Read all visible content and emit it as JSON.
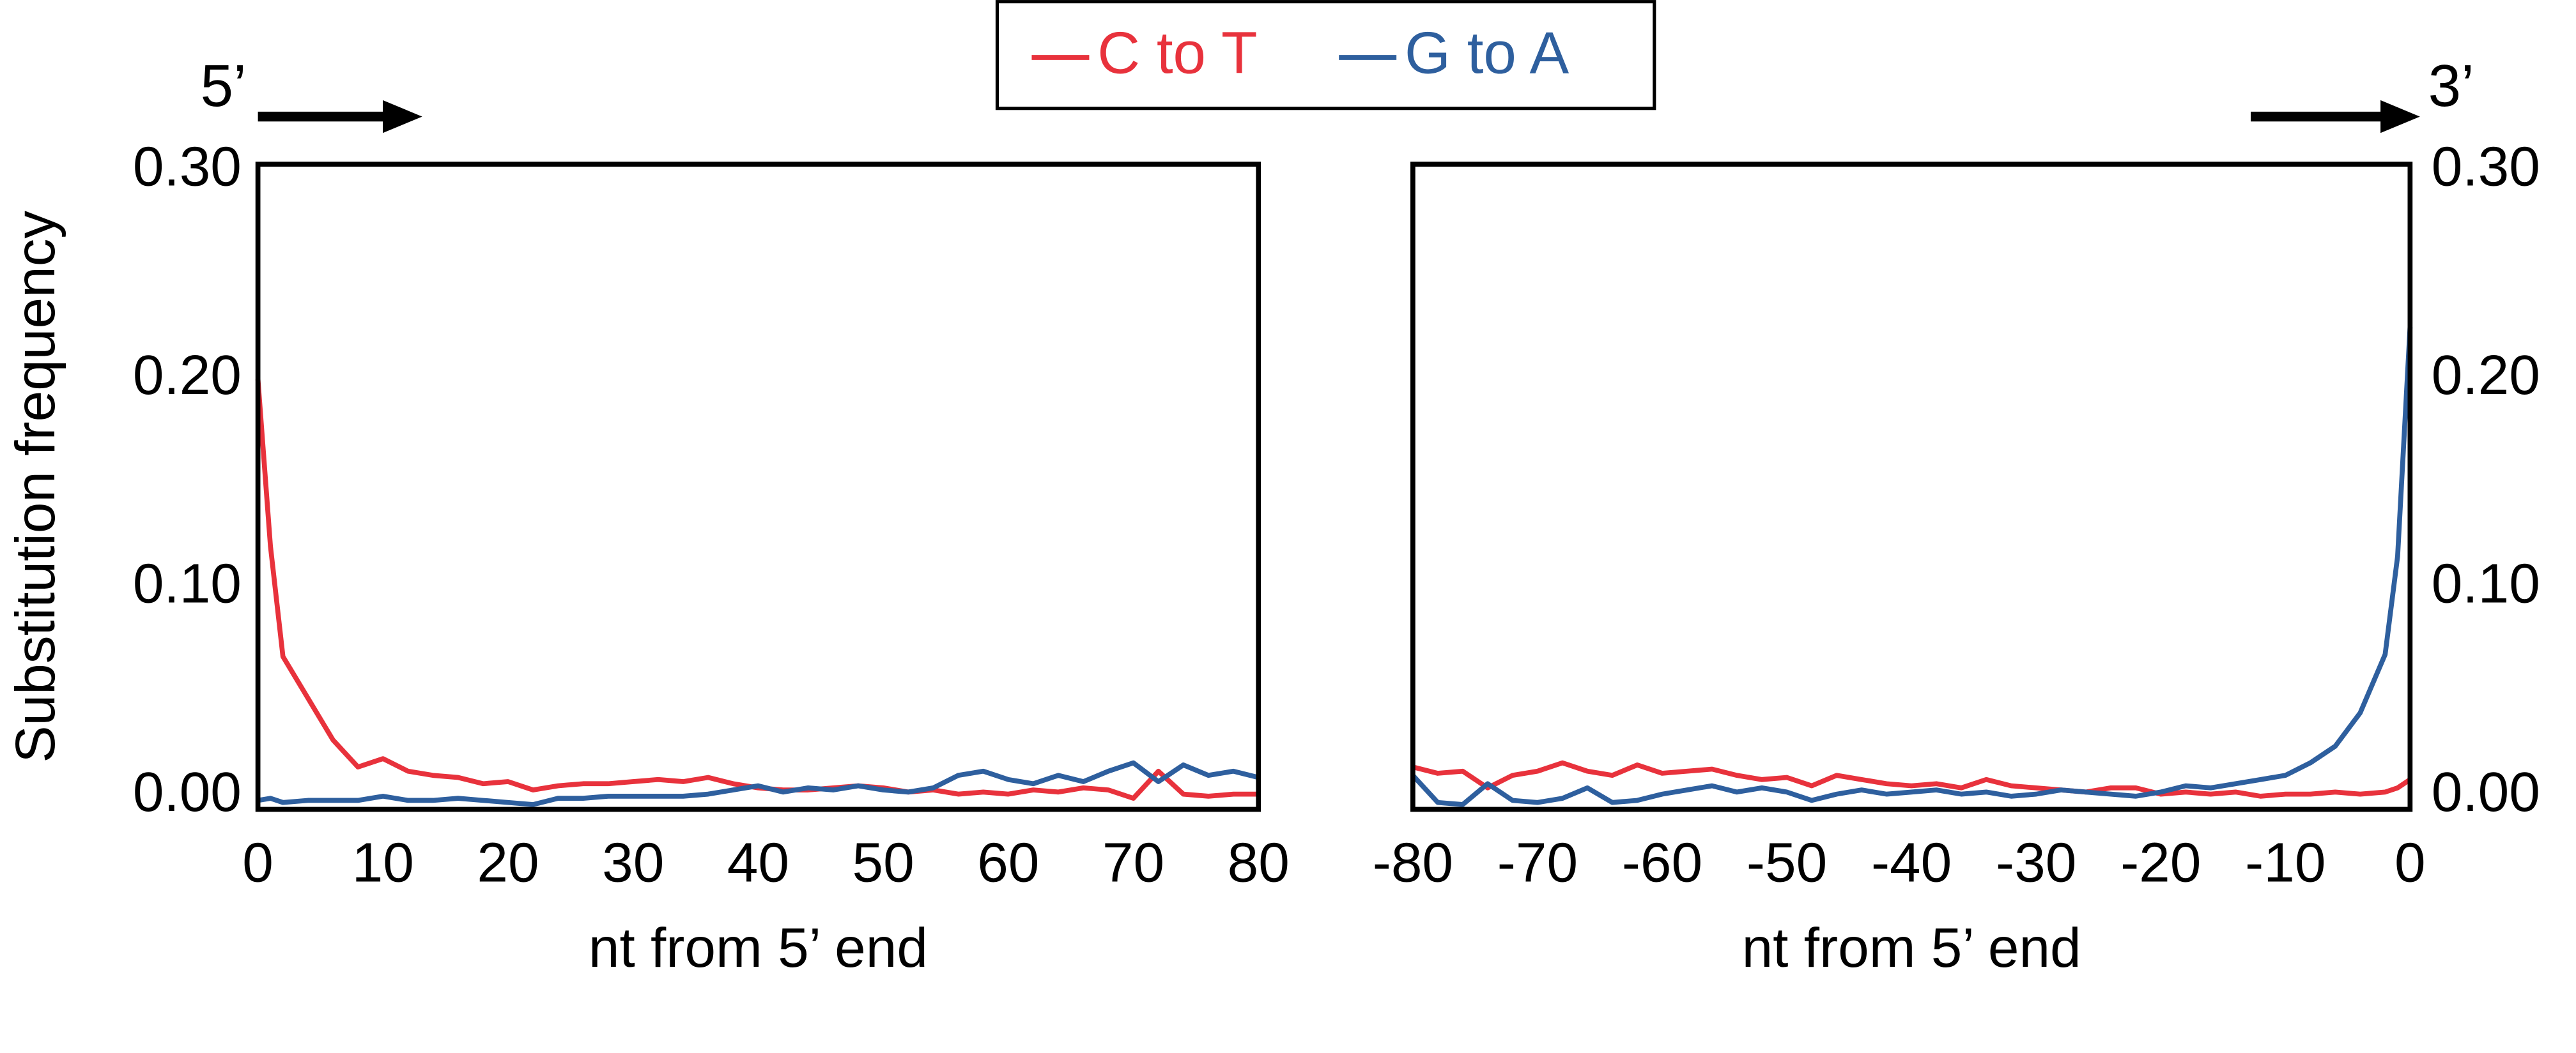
{
  "chart_data": [
    {
      "type": "line",
      "annotation": "5’",
      "xlabel": "nt from 5’ end",
      "ylabel": "Substitution frequency",
      "x": [
        0,
        1,
        2,
        4,
        6,
        8,
        10,
        12,
        14,
        16,
        18,
        20,
        22,
        24,
        26,
        28,
        30,
        32,
        34,
        36,
        38,
        40,
        42,
        44,
        46,
        48,
        50,
        52,
        54,
        56,
        58,
        60,
        62,
        64,
        66,
        68,
        70,
        72,
        74,
        76,
        78,
        80
      ],
      "series": [
        {
          "name": "C to T",
          "color": "#e8323c",
          "values": [
            0.2,
            0.12,
            0.067,
            0.047,
            0.027,
            0.014,
            0.018,
            0.012,
            0.01,
            0.009,
            0.006,
            0.007,
            0.003,
            0.005,
            0.006,
            0.006,
            0.007,
            0.008,
            0.007,
            0.009,
            0.006,
            0.004,
            0.003,
            0.003,
            0.004,
            0.005,
            0.004,
            0.002,
            0.003,
            0.001,
            0.002,
            0.001,
            0.003,
            0.002,
            0.004,
            0.003,
            -0.001,
            0.012,
            0.001,
            0.0,
            0.001,
            0.001
          ]
        },
        {
          "name": "G to A",
          "color": "#2e5f9e",
          "values": [
            -0.002,
            -0.001,
            -0.003,
            -0.002,
            -0.002,
            -0.002,
            0.0,
            -0.002,
            -0.002,
            -0.001,
            -0.002,
            -0.003,
            -0.004,
            -0.001,
            -0.001,
            0.0,
            0.0,
            0.0,
            0.0,
            0.001,
            0.003,
            0.005,
            0.002,
            0.004,
            0.003,
            0.005,
            0.003,
            0.002,
            0.004,
            0.01,
            0.012,
            0.008,
            0.006,
            0.01,
            0.007,
            0.012,
            0.016,
            0.007,
            0.015,
            0.01,
            0.012,
            0.009
          ]
        }
      ],
      "xlim": [
        0,
        80
      ],
      "xticks": [
        0,
        10,
        20,
        30,
        40,
        50,
        60,
        70,
        80
      ],
      "ylim": [
        -0.0063,
        0.3031
      ],
      "yticks": [
        {
          "value": 0,
          "label": "0.00"
        },
        {
          "value": 0.1,
          "label": "0.10"
        },
        {
          "value": 0.2,
          "label": "0.20"
        },
        {
          "value": 0.3,
          "label": "0.30"
        }
      ],
      "yaxis_side": "left"
    },
    {
      "type": "line",
      "annotation": "3’",
      "xlabel": "nt from 5’ end",
      "x": [
        -80,
        -78,
        -76,
        -74,
        -72,
        -70,
        -68,
        -66,
        -64,
        -62,
        -60,
        -58,
        -56,
        -54,
        -52,
        -50,
        -48,
        -46,
        -44,
        -42,
        -40,
        -38,
        -36,
        -34,
        -32,
        -30,
        -28,
        -26,
        -24,
        -22,
        -20,
        -18,
        -16,
        -14,
        -12,
        -10,
        -8,
        -6,
        -4,
        -2,
        -1,
        0
      ],
      "series": [
        {
          "color": "#e8323c",
          "values": [
            0.014,
            0.011,
            0.012,
            0.004,
            0.01,
            0.012,
            0.016,
            0.012,
            0.01,
            0.015,
            0.011,
            0.012,
            0.013,
            0.01,
            0.008,
            0.009,
            0.005,
            0.01,
            0.008,
            0.006,
            0.005,
            0.006,
            0.004,
            0.008,
            0.005,
            0.004,
            0.003,
            0.002,
            0.004,
            0.004,
            0.001,
            0.002,
            0.001,
            0.002,
            0.0,
            0.001,
            0.001,
            0.002,
            0.001,
            0.002,
            0.004,
            0.008
          ]
        },
        {
          "color": "#2e5f9e",
          "values": [
            0.01,
            -0.003,
            -0.004,
            0.006,
            -0.002,
            -0.003,
            -0.001,
            0.004,
            -0.003,
            -0.002,
            0.001,
            0.003,
            0.005,
            0.002,
            0.004,
            0.002,
            -0.002,
            0.001,
            0.003,
            0.001,
            0.002,
            0.003,
            0.001,
            0.002,
            0.0,
            0.001,
            0.003,
            0.002,
            0.001,
            0.0,
            0.002,
            0.005,
            0.004,
            0.006,
            0.008,
            0.01,
            0.016,
            0.024,
            0.04,
            0.068,
            0.115,
            0.225
          ]
        }
      ],
      "xlim": [
        -80,
        0
      ],
      "xticks": [
        -80,
        -70,
        -60,
        -50,
        -40,
        -30,
        -20,
        -10,
        0
      ],
      "ylim": [
        -0.0063,
        0.3031
      ],
      "yticks": [
        {
          "value": 0,
          "label": "0.00"
        },
        {
          "value": 0.1,
          "label": "0.10"
        },
        {
          "value": 0.2,
          "label": "0.20"
        },
        {
          "value": 0.3,
          "label": "0.30"
        }
      ],
      "yaxis_side": "right"
    }
  ]
}
